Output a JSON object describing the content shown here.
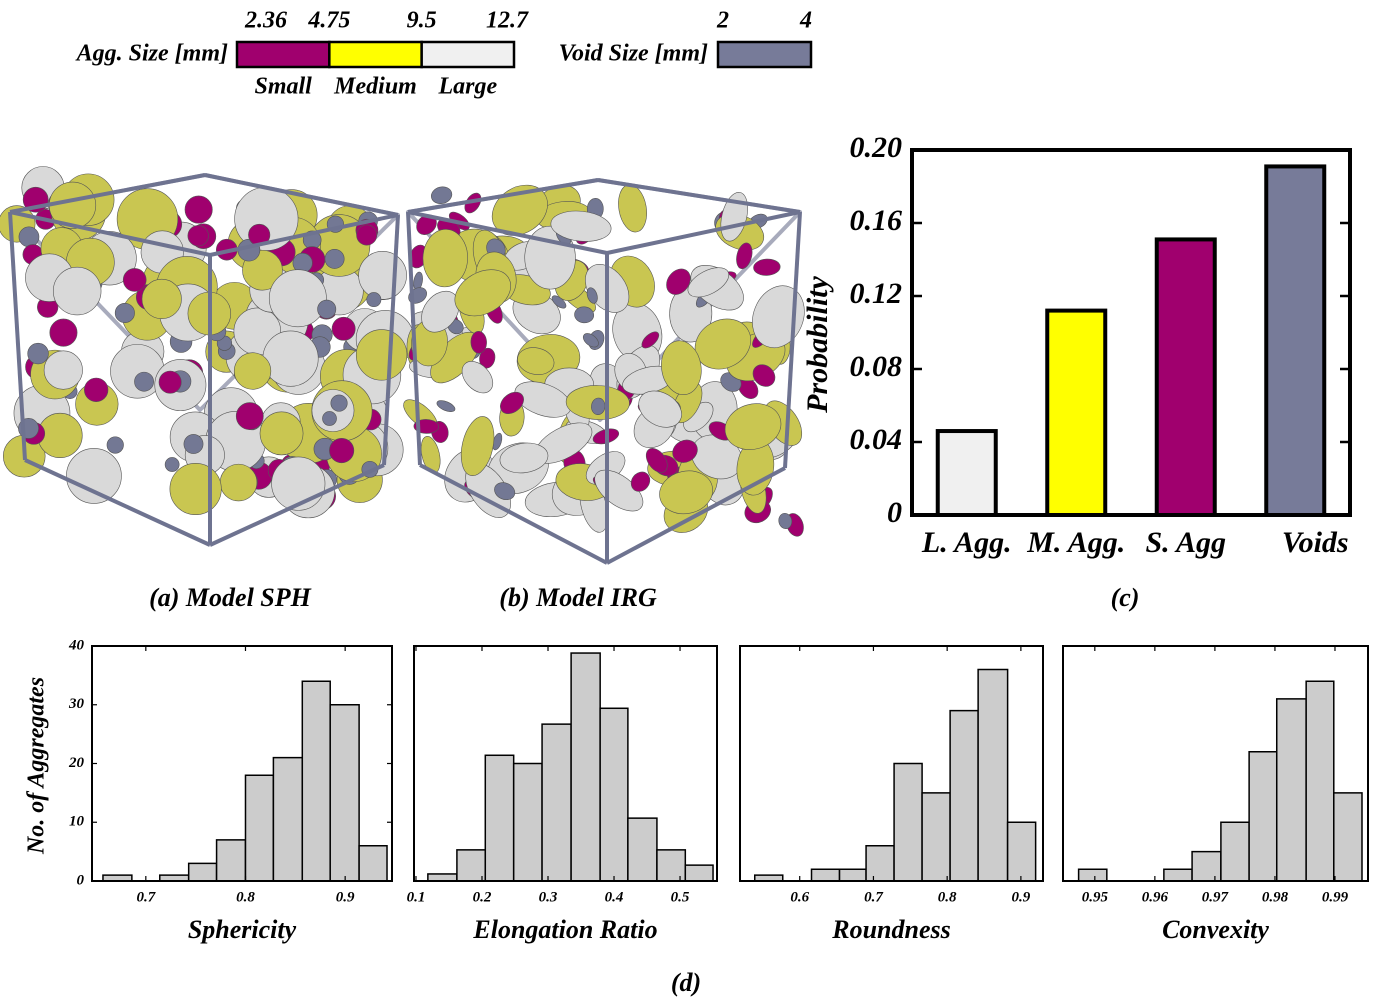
{
  "legend": {
    "agg_label": "Agg. Size [mm]",
    "agg_ticks": [
      2.36,
      4.75,
      9.5,
      12.7
    ],
    "agg_classes": [
      "Small",
      "Medium",
      "Large"
    ],
    "agg_colors": [
      "#a0006e",
      "#ffff00",
      "#f0f0f0"
    ],
    "void_label": "Void Size [mm]",
    "void_ticks": [
      2,
      4
    ],
    "void_color": "#777b99"
  },
  "captions": {
    "a": "(a) Model SPH",
    "b": "(b) Model IRG",
    "c": "(c)",
    "d": "(d)"
  },
  "chart_data": [
    {
      "type": "bar",
      "ylabel": "Probability",
      "categories": [
        "L. Agg.",
        "M. Agg.",
        "S. Agg",
        "Voids"
      ],
      "values": [
        0.046,
        0.112,
        0.151,
        0.191
      ],
      "colors": [
        "#f0f0f0",
        "#ffff00",
        "#a0006e",
        "#777b99"
      ],
      "ylim": [
        0,
        0.2
      ],
      "yticks": [
        0,
        0.04,
        0.08,
        0.12,
        0.16,
        {
          "value": 0.2,
          "label": "0.20"
        }
      ]
    },
    {
      "type": "histogram",
      "xlabel": "Sphericity",
      "ylabel": "No. of Aggregates",
      "color": "#cccccc",
      "bins": [
        0.657,
        0.686,
        0.714,
        0.743,
        0.771,
        0.8,
        0.828,
        0.857,
        0.885,
        0.914,
        0.942
      ],
      "values": [
        1,
        0,
        1,
        3,
        7,
        18,
        21,
        34,
        30,
        6
      ],
      "xlim": [
        0.646,
        0.947
      ],
      "xticks": [
        0.7,
        0.8,
        0.9
      ],
      "ylim": [
        0,
        40
      ],
      "yticks": [
        0,
        10,
        20,
        30,
        40
      ]
    },
    {
      "type": "histogram",
      "xlabel": "Elongation Ratio",
      "color": "#cccccc",
      "bins": [
        0.118,
        0.162,
        0.205,
        0.248,
        0.291,
        0.335,
        0.379,
        0.421,
        0.465,
        0.508,
        0.55
      ],
      "values": [
        1.2,
        5.3,
        21.4,
        20,
        26.7,
        38.8,
        29.4,
        10.7,
        5.3,
        2.7
      ],
      "xlim": [
        0.097,
        0.556
      ],
      "xticks": [
        0.1,
        0.2,
        0.3,
        0.4,
        0.5
      ],
      "ylim": [
        0,
        40
      ]
    },
    {
      "type": "histogram",
      "xlabel": "Roundness",
      "color": "#cccccc",
      "bins": [
        0.539,
        0.577,
        0.616,
        0.654,
        0.69,
        0.728,
        0.766,
        0.804,
        0.842,
        0.882,
        0.92
      ],
      "values": [
        1,
        0,
        2,
        2,
        6,
        20,
        15,
        29,
        36,
        10
      ],
      "xlim": [
        0.519,
        0.93
      ],
      "xticks": [
        0.6,
        0.7,
        0.8,
        0.9
      ],
      "ylim": [
        0,
        40
      ]
    },
    {
      "type": "histogram",
      "xlabel": "Convexity",
      "color": "#cccccc",
      "bins": [
        0.9473,
        0.952,
        0.9567,
        0.9615,
        0.9662,
        0.971,
        0.9757,
        0.9803,
        0.9852,
        0.9898,
        0.9945
      ],
      "values": [
        2,
        0,
        0,
        2,
        5,
        10,
        22,
        31,
        34,
        15
      ],
      "xlim": [
        0.9447,
        0.9955
      ],
      "xticks": [
        0.95,
        0.96,
        0.97,
        0.98,
        0.99
      ],
      "ylim": [
        0,
        40
      ]
    }
  ]
}
